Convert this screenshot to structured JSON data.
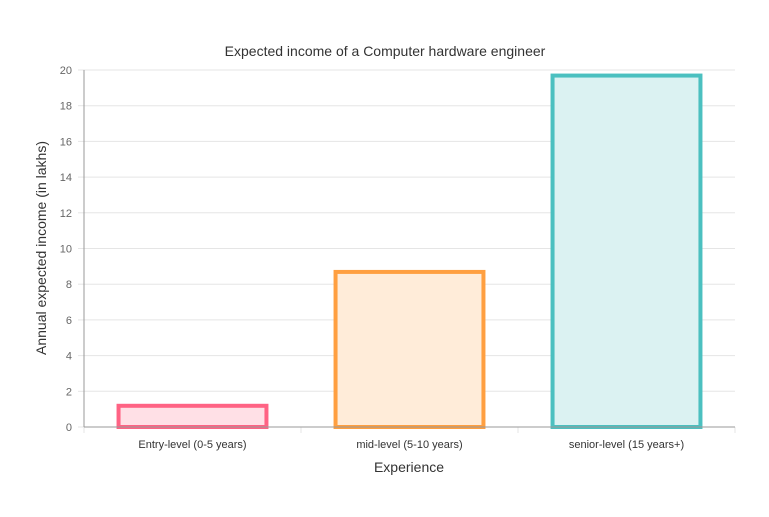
{
  "chart_data": {
    "type": "bar",
    "title": "Expected income of a Computer hardware engineer",
    "xlabel": "Experience",
    "ylabel": "Annual expected income (in lakhs)",
    "categories": [
      "Entry-level (0-5 years)",
      "mid-level (5-10 years)",
      "senior-level (15 years+)"
    ],
    "values": [
      1.3,
      8.8,
      19.8
    ],
    "ylim": [
      0,
      20
    ],
    "yticks": [
      0,
      2,
      4,
      6,
      8,
      10,
      12,
      14,
      16,
      18,
      20
    ],
    "grid": true,
    "legend": "none",
    "colors": {
      "borders": [
        "#ff6384",
        "#ff9f40",
        "#4bc0c0"
      ],
      "fills": [
        "#ffe0e6",
        "#ffecd9",
        "#dbf2f2"
      ],
      "grid": "#e5e5e5",
      "axis": "#999999",
      "text": "#333333",
      "tick_text": "#666666"
    }
  }
}
